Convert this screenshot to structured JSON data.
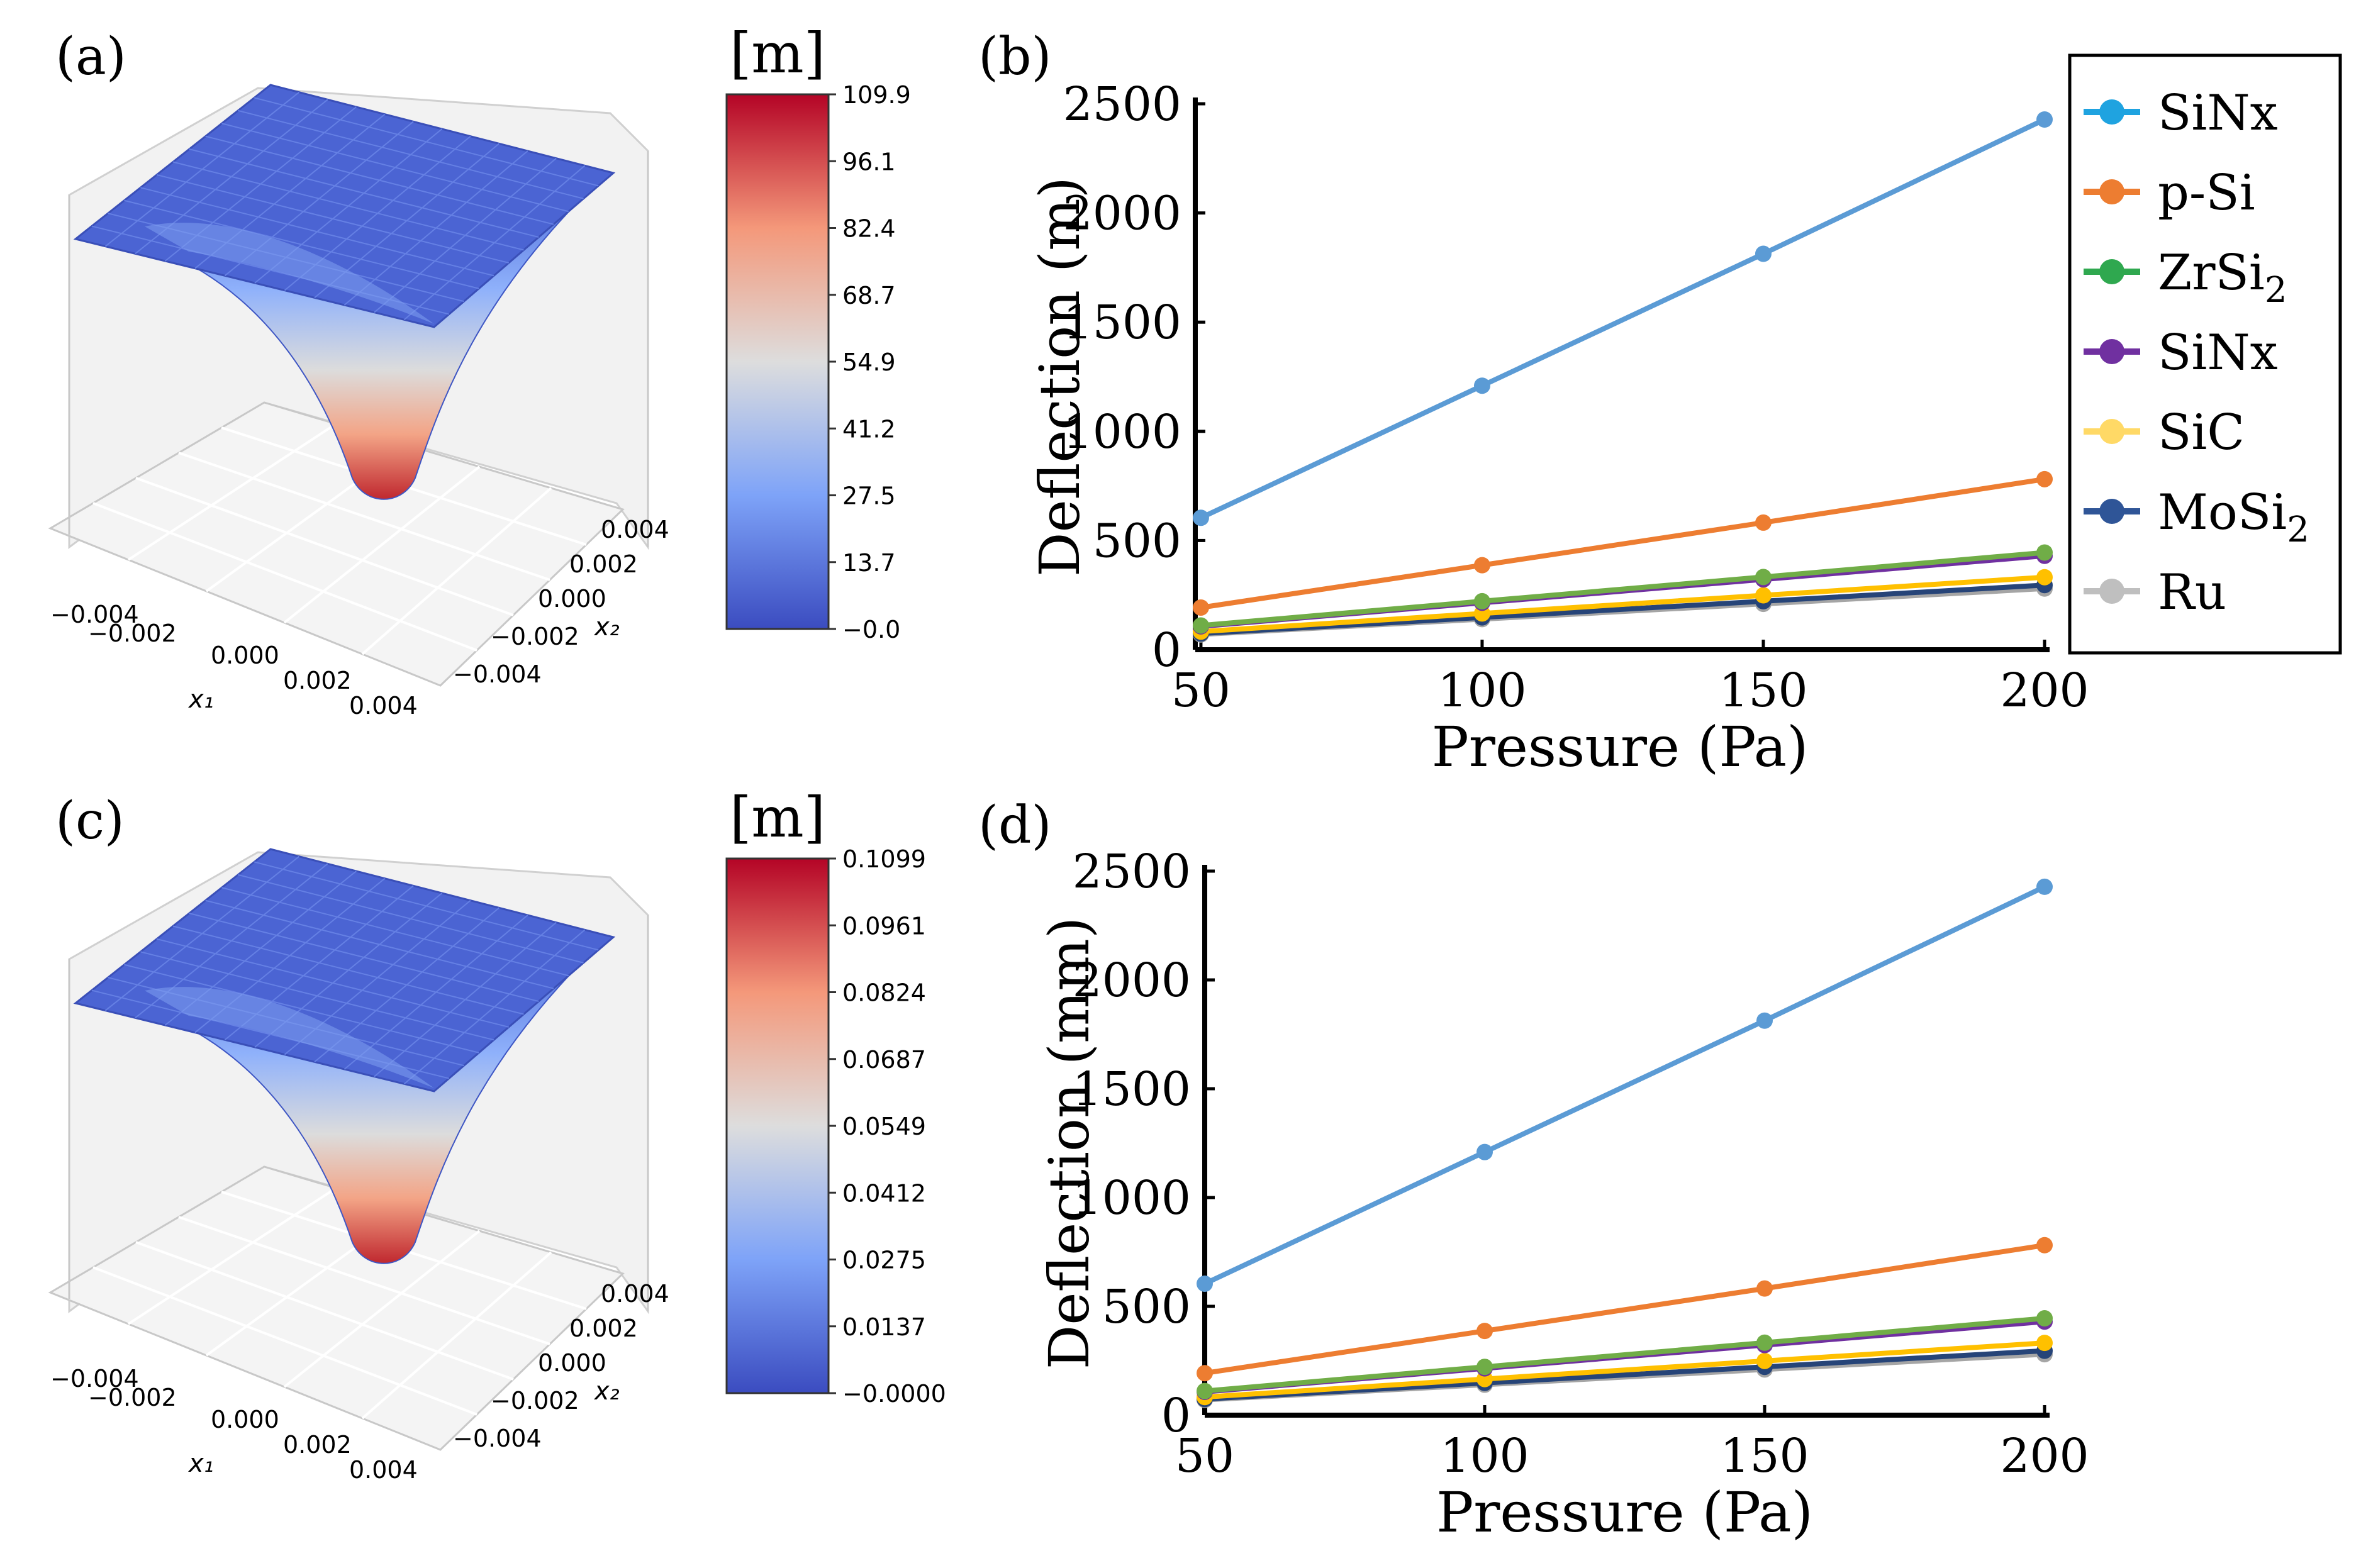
{
  "figure": {
    "panel_labels": [
      "(a)",
      "(b)",
      "(c)",
      "(d)"
    ]
  },
  "chart_data": [
    {
      "panel": "(a)",
      "type": "surface3d",
      "colorbar_title": "[m]",
      "colorbar_ticks": [
        "109.9",
        "96.1",
        "82.4",
        "68.7",
        "54.9",
        "41.2",
        "27.5",
        "13.7",
        "−0.0"
      ],
      "x1_label": "x₁",
      "x2_label": "x₂",
      "x1_ticks": [
        "−0.004",
        "−0.002",
        "0.000",
        "0.002",
        "0.004"
      ],
      "x2_ticks": [
        "0.004",
        "0.002",
        "0.000",
        "−0.002",
        "−0.004"
      ],
      "range": [
        0.0,
        109.9
      ],
      "colormap": "coolwarm"
    },
    {
      "panel": "(b)",
      "type": "line",
      "xlabel": "Pressure (Pa)",
      "ylabel": "Deflection (m)",
      "x": [
        50,
        100,
        150,
        200
      ],
      "x_ticks": [
        "50",
        "100",
        "150",
        "200"
      ],
      "y_ticks": [
        "0",
        "500",
        "1000",
        "1500",
        "2000",
        "2500"
      ],
      "xlim": [
        49,
        200
      ],
      "ylim": [
        0,
        2500
      ],
      "series": [
        {
          "name": "SiNx",
          "color": "#5b9bd5",
          "values": [
            604,
            1209,
            1813,
            2428
          ]
        },
        {
          "name": "p-Si",
          "color": "#ed7d31",
          "values": [
            193,
            387,
            582,
            781
          ]
        },
        {
          "name": "ZrSi2",
          "color": "#70ad47",
          "values": [
            111,
            222,
            333,
            445
          ]
        },
        {
          "name": "SiNx",
          "color": "#7030a0",
          "values": [
            107,
            215,
            322,
            430
          ]
        },
        {
          "name": "SiC",
          "color": "#ffc000",
          "values": [
            83,
            166,
            249,
            332
          ]
        },
        {
          "name": "MoSi2",
          "color": "#264478",
          "values": [
            74,
            148,
            222,
            296
          ]
        },
        {
          "name": "Ru",
          "color": "#a5a5a5",
          "values": [
            70,
            140,
            210,
            280
          ]
        }
      ],
      "legend": {
        "position": "right",
        "entries": [
          {
            "label": "SiNx",
            "sub": "",
            "color": "#1fa3e0"
          },
          {
            "label": "p-Si",
            "sub": "",
            "color": "#ed7d31"
          },
          {
            "label": "ZrSi",
            "sub": "2",
            "color": "#2fa84f"
          },
          {
            "label": "SiNx",
            "sub": "",
            "color": "#7030a0"
          },
          {
            "label": "SiC",
            "sub": "",
            "color": "#ffd966"
          },
          {
            "label": "MoSi",
            "sub": "2",
            "color": "#2f5597"
          },
          {
            "label": "Ru",
            "sub": "",
            "color": "#bfbfbf"
          }
        ]
      }
    },
    {
      "panel": "(c)",
      "type": "surface3d",
      "colorbar_title": "[m]",
      "colorbar_ticks": [
        "0.1099",
        "0.0961",
        "0.0824",
        "0.0687",
        "0.0549",
        "0.0412",
        "0.0275",
        "0.0137",
        "−0.0000"
      ],
      "x1_label": "x₁",
      "x2_label": "x₂",
      "x1_ticks": [
        "−0.004",
        "−0.002",
        "0.000",
        "0.002",
        "0.004"
      ],
      "x2_ticks": [
        "0.004",
        "0.002",
        "0.000",
        "−0.002",
        "−0.004"
      ],
      "range": [
        0.0,
        0.1099
      ],
      "colormap": "coolwarm"
    },
    {
      "panel": "(d)",
      "type": "line",
      "xlabel": "Pressure (Pa)",
      "ylabel": "Deflection (mm)",
      "x": [
        50,
        100,
        150,
        200
      ],
      "x_ticks": [
        "50",
        "100",
        "150",
        "200"
      ],
      "y_ticks": [
        "0",
        "500",
        "1000",
        "1500",
        "2000",
        "2500"
      ],
      "xlim": [
        50,
        200
      ],
      "ylim": [
        0,
        2500
      ],
      "series": [
        {
          "name": "SiNx",
          "color": "#5b9bd5",
          "values": [
            604,
            1209,
            1813,
            2428
          ]
        },
        {
          "name": "p-Si",
          "color": "#ed7d31",
          "values": [
            193,
            387,
            582,
            781
          ]
        },
        {
          "name": "ZrSi2",
          "color": "#70ad47",
          "values": [
            111,
            222,
            333,
            445
          ]
        },
        {
          "name": "SiNx",
          "color": "#7030a0",
          "values": [
            107,
            215,
            322,
            430
          ]
        },
        {
          "name": "SiC",
          "color": "#ffc000",
          "values": [
            83,
            166,
            249,
            332
          ]
        },
        {
          "name": "MoSi2",
          "color": "#264478",
          "values": [
            74,
            148,
            222,
            296
          ]
        },
        {
          "name": "Ru",
          "color": "#a5a5a5",
          "values": [
            70,
            140,
            210,
            280
          ]
        }
      ]
    }
  ]
}
